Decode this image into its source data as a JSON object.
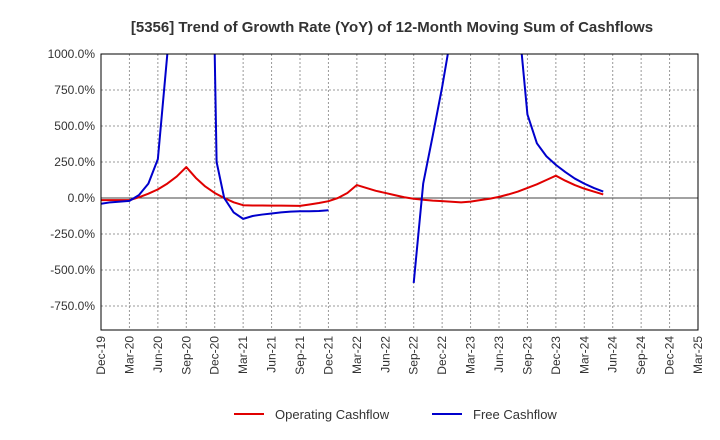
{
  "chart_data": {
    "type": "line",
    "title": "[5356]  Trend of Growth Rate (YoY) of 12-Month Moving Sum of Cashflows",
    "xlabel": "",
    "ylabel": "",
    "ylim": [
      -900,
      1000
    ],
    "y_ticks": [
      "1000.0%",
      "750.0%",
      "500.0%",
      "250.0%",
      "0.0%",
      "-250.0%",
      "-500.0%",
      "-750.0%"
    ],
    "y_tick_values": [
      1000,
      750,
      500,
      250,
      0,
      -250,
      -500,
      -750
    ],
    "x_ticks": [
      "Dec-19",
      "Mar-20",
      "Jun-20",
      "Sep-20",
      "Dec-20",
      "Mar-21",
      "Jun-21",
      "Sep-21",
      "Dec-21",
      "Mar-22",
      "Jun-22",
      "Sep-22",
      "Dec-22",
      "Mar-23",
      "Jun-23",
      "Sep-23",
      "Dec-23",
      "Mar-24",
      "Jun-24",
      "Sep-24",
      "Dec-24",
      "Mar-25"
    ],
    "grid": true,
    "legend_position": "bottom",
    "series": [
      {
        "name": "Operating Cashflow",
        "color": "#e00000",
        "points": [
          [
            0,
            -15
          ],
          [
            1,
            -15
          ],
          [
            2,
            -15
          ],
          [
            3,
            -15
          ],
          [
            4,
            5
          ],
          [
            5,
            30
          ],
          [
            6,
            60
          ],
          [
            7,
            100
          ],
          [
            8,
            150
          ],
          [
            9,
            215
          ],
          [
            10,
            140
          ],
          [
            11,
            80
          ],
          [
            12,
            35
          ],
          [
            13,
            0
          ],
          [
            14,
            -30
          ],
          [
            15,
            -50
          ],
          [
            16,
            -52
          ],
          [
            17,
            -52
          ],
          [
            18,
            -53
          ],
          [
            19,
            -53
          ],
          [
            20,
            -54
          ],
          [
            21,
            -55
          ],
          [
            22,
            -45
          ],
          [
            23,
            -35
          ],
          [
            24,
            -22
          ],
          [
            25,
            0
          ],
          [
            26,
            35
          ],
          [
            27,
            90
          ],
          [
            28,
            70
          ],
          [
            29,
            50
          ],
          [
            30,
            35
          ],
          [
            31,
            20
          ],
          [
            32,
            5
          ],
          [
            33,
            -5
          ],
          [
            34,
            -12
          ],
          [
            35,
            -18
          ],
          [
            36,
            -22
          ],
          [
            37,
            -26
          ],
          [
            38,
            -30
          ],
          [
            39,
            -25
          ],
          [
            40,
            -15
          ],
          [
            41,
            -5
          ],
          [
            42,
            8
          ],
          [
            43,
            25
          ],
          [
            44,
            45
          ],
          [
            45,
            70
          ],
          [
            46,
            95
          ],
          [
            47,
            125
          ],
          [
            48,
            155
          ],
          [
            49,
            120
          ],
          [
            50,
            90
          ],
          [
            51,
            65
          ],
          [
            52,
            45
          ],
          [
            53,
            25
          ]
        ]
      },
      {
        "name": "Free Cashflow",
        "color": "#0000cc",
        "segments": [
          [
            [
              0,
              -40
            ],
            [
              1,
              -30
            ],
            [
              2,
              -25
            ],
            [
              3,
              -20
            ],
            [
              4,
              20
            ],
            [
              5,
              100
            ],
            [
              6,
              270
            ],
            [
              7,
              1000
            ]
          ],
          [
            [
              12,
              1000
            ],
            [
              12.2,
              250
            ],
            [
              13,
              0
            ],
            [
              14,
              -100
            ],
            [
              15,
              -145
            ],
            [
              16,
              -125
            ],
            [
              17,
              -115
            ],
            [
              18,
              -108
            ],
            [
              19,
              -100
            ],
            [
              20,
              -95
            ],
            [
              21,
              -92
            ],
            [
              22,
              -92
            ],
            [
              23,
              -90
            ],
            [
              24,
              -85
            ]
          ],
          [
            [
              33,
              -590
            ],
            [
              34,
              100
            ],
            [
              35,
              430
            ],
            [
              36,
              770
            ],
            [
              36.6,
              1000
            ]
          ],
          [
            [
              44.4,
              1000
            ],
            [
              45,
              580
            ],
            [
              46,
              380
            ],
            [
              47,
              290
            ],
            [
              48,
              230
            ],
            [
              49,
              180
            ],
            [
              50,
              135
            ],
            [
              51,
              100
            ],
            [
              52,
              70
            ],
            [
              53,
              45
            ]
          ]
        ]
      }
    ]
  }
}
